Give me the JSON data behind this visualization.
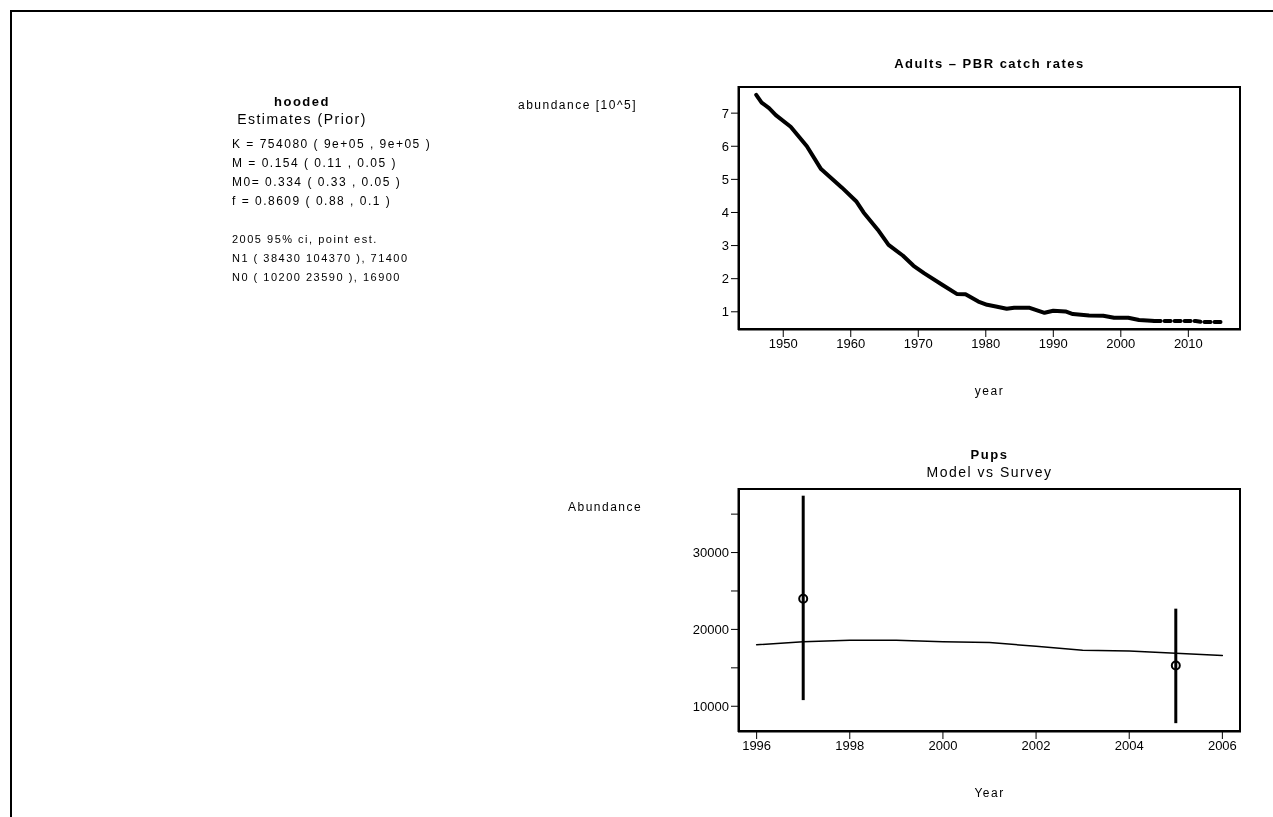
{
  "chart_data": [
    {
      "type": "other",
      "title": "hooded",
      "subtitle": "Estimates (Prior)",
      "annotations": [
        "K = 754080 ( 9e+05 , 9e+05 )",
        "M = 0.154 ( 0.11 , 0.05 )",
        "M0= 0.334 ( 0.33 , 0.05 )",
        "f = 0.8609 ( 0.88 , 0.1 )",
        "2005 95% ci, point est.",
        "N1 ( 38430 104370 ), 71400",
        "N0 ( 10200 23590 ), 16900"
      ]
    },
    {
      "type": "line",
      "title": "Adults – PBR catch rates",
      "xlabel": "year",
      "ylabel": "abundance [10^5]",
      "xlim": [
        1943.3,
        2017.8
      ],
      "ylim": [
        0.45,
        7.82
      ],
      "xticks": [
        1950,
        1960,
        1970,
        1980,
        1990,
        2000,
        2010
      ],
      "yticks": [
        1,
        2,
        3,
        4,
        5,
        6,
        7
      ],
      "marker": "none",
      "series": [
        {
          "color": "#000000",
          "line_style": "solid",
          "x": [
            1946,
            1946.8,
            1947.9,
            1948.9,
            1951.1,
            1953.5,
            1955.6,
            1958.7,
            1960.8,
            1961.9,
            1964,
            1965.6,
            1967.7,
            1969.3,
            1970.9,
            1973.6,
            1975.7,
            1977,
            1978.9,
            1980.2,
            1981.5,
            1983.1,
            1984.2,
            1986.5,
            1988.7,
            1990,
            1991.8,
            1992.9,
            1995.3,
            1997.4,
            1999,
            2001.1,
            2002.7,
            2004.5,
            2005
          ],
          "values": [
            7.55,
            7.32,
            7.15,
            6.94,
            6.59,
            6.0,
            5.31,
            4.75,
            4.34,
            4.0,
            3.48,
            3.02,
            2.7,
            2.39,
            2.16,
            1.81,
            1.54,
            1.53,
            1.31,
            1.21,
            1.16,
            1.09,
            1.12,
            1.12,
            0.97,
            1.03,
            1.01,
            0.93,
            0.89,
            0.88,
            0.82,
            0.82,
            0.75,
            0.73,
            0.72
          ]
        },
        {
          "color": "#000000",
          "line_style": "dashed",
          "x": [
            2005,
            2011.1,
            2012.2,
            2015.1
          ],
          "values": [
            0.72,
            0.72,
            0.69,
            0.69
          ]
        }
      ]
    },
    {
      "type": "line",
      "title": "Pups",
      "subtitle": "Model vs Survey",
      "xlabel": "Year",
      "ylabel": "Abundance",
      "xlim": [
        1995.6,
        2006.4
      ],
      "ylim": [
        6650,
        38400
      ],
      "xticks": [
        1996,
        1998,
        2000,
        2002,
        2004,
        2006
      ],
      "yticks": [
        10000,
        {
          "value": 15000,
          "label": null
        },
        20000,
        {
          "value": 25000,
          "label": null
        },
        30000,
        {
          "value": 35000,
          "label": null
        }
      ],
      "series": [
        {
          "type": "line",
          "color": "#000000",
          "marker": "none",
          "x": [
            1996,
            1997,
            1998,
            1999,
            2000,
            2001,
            2002,
            2003,
            2004,
            2005,
            2006
          ],
          "values": [
            18000,
            18400,
            18600,
            18600,
            18400,
            18300,
            17800,
            17300,
            17200,
            16900,
            16600
          ]
        },
        {
          "type": "scatter",
          "color": "#000000",
          "marker": "circle",
          "x": [
            1997,
            2005
          ],
          "values": [
            24000,
            15300
          ],
          "errors": [
            [
              10800,
              37400
            ],
            [
              7800,
              22700
            ]
          ]
        }
      ]
    }
  ]
}
